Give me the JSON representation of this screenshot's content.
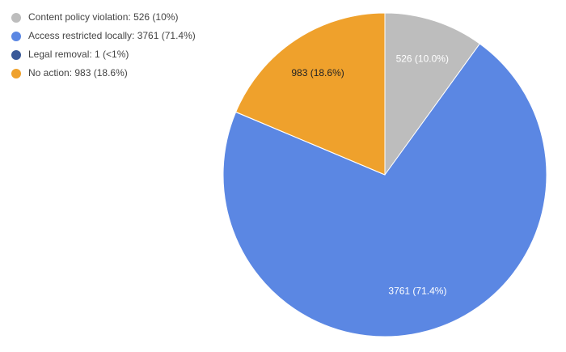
{
  "chart_data": {
    "type": "pie",
    "categories": [
      "Content policy violation: 526 (10%)",
      "Access restricted locally: 3761 (71.4%)",
      "Legal removal: 1 (<1%)",
      "No action: 983 (18.6%)"
    ],
    "values": [
      526,
      3761,
      1,
      983
    ],
    "value_labels": [
      "526 (10.0%)",
      "3761 (71.4%)",
      null,
      "983 (18.6%)"
    ],
    "colors": [
      "#bdbdbd",
      "#5b87e3",
      "#3a5998",
      "#efa12c"
    ],
    "legend": "top-left"
  }
}
